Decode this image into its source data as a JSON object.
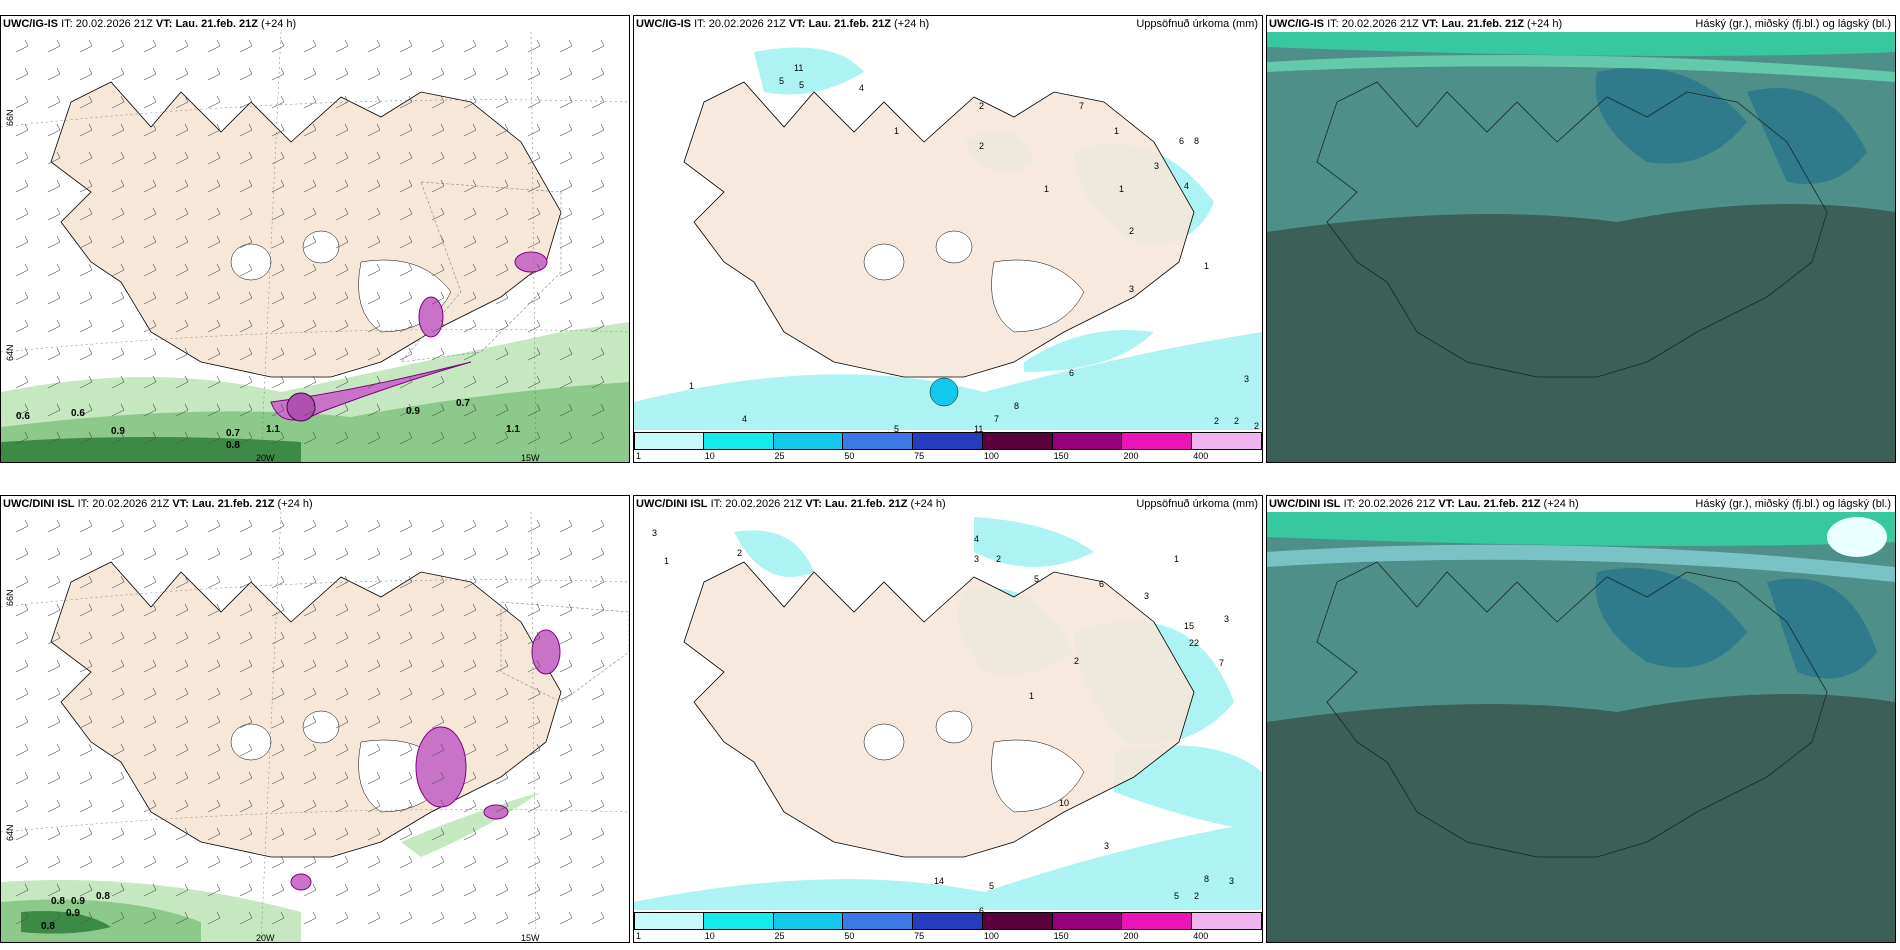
{
  "rows": [
    {
      "model": "UWC/IG-IS",
      "it_label": "IT:",
      "it_value": "20.02.2026 21Z",
      "vt_label": "VT:",
      "vt_value": "Lau. 21.feb. 21Z",
      "lead": "(+24 h)"
    },
    {
      "model": "UWC/DINI ISL",
      "it_label": "IT:",
      "it_value": "20.02.2026 21Z",
      "vt_label": "VT:",
      "vt_value": "Lau. 21.feb. 21Z",
      "lead": "(+24 h)"
    }
  ],
  "precip_title": "Uppsöfnuð úrkoma (mm)",
  "cloud_title": "Háský (gr.), miðský (fj.bl.) og lágský (bl.)",
  "lat_labels": [
    "66N",
    "64N"
  ],
  "lon_labels": [
    "20W",
    "15W"
  ],
  "colorbar": {
    "ticks": [
      "1",
      "10",
      "25",
      "50",
      "75",
      "100",
      "150",
      "200",
      "400"
    ],
    "colors": [
      "#c8fafa",
      "#14ebeb",
      "#14c8eb",
      "#3c78e6",
      "#283cbe",
      "#5a003c",
      "#96007d",
      "#eb14b4",
      "#f0b4f0"
    ]
  },
  "wind_values_top": [
    "0.6",
    "0.6",
    "0.9",
    "0.7",
    "0.8",
    "1.1",
    "0.9",
    "0.7",
    "1.1"
  ],
  "wind_values_bottom": [
    "0.8",
    "0.9",
    "0.8",
    "0.8",
    "0.9"
  ],
  "precip_values_top": [
    "11",
    "5",
    "5",
    "4",
    "2",
    "1",
    "2",
    "7",
    "1",
    "3",
    "6",
    "8",
    "1",
    "4",
    "1",
    "2",
    "1",
    "3",
    "4",
    "2",
    "11",
    "7",
    "8",
    "6",
    "5",
    "3",
    "2",
    "2",
    "1"
  ],
  "precip_values_bottom": [
    "3",
    "1",
    "2",
    "4",
    "3",
    "2",
    "5",
    "1",
    "6",
    "3",
    "15",
    "22",
    "7",
    "3",
    "2",
    "1",
    "10",
    "14",
    "5",
    "3",
    "8",
    "2",
    "3",
    "5",
    "6"
  ],
  "colors": {
    "land": "#f6e7d9",
    "sea": "#ffffff",
    "cloud_base": "#4f8f8a",
    "cloud_low": "#3c5f58",
    "cloud_high": "#38c8a0"
  }
}
